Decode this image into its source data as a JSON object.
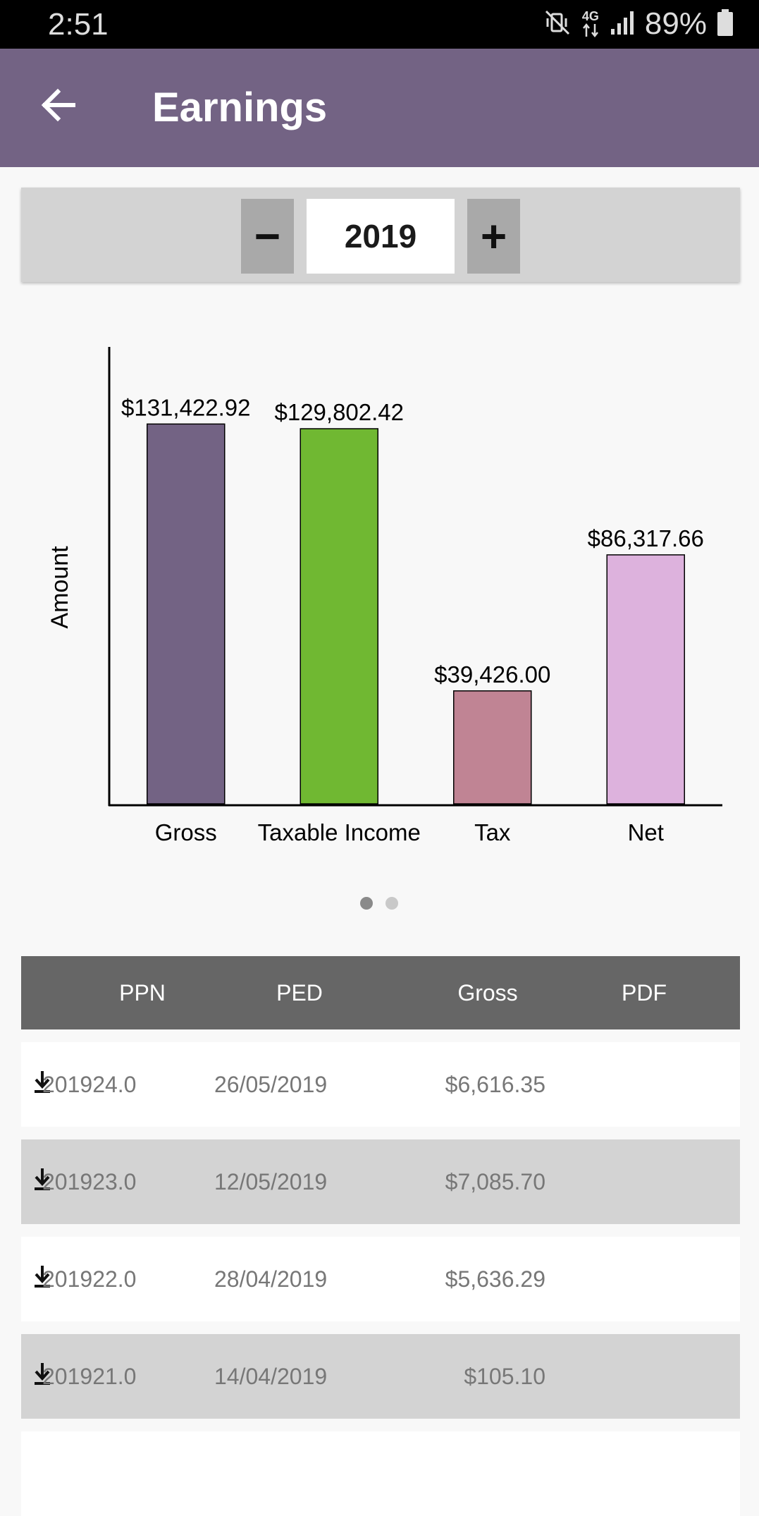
{
  "status_bar": {
    "time": "2:51",
    "network": "4G",
    "battery": "89%",
    "icons": [
      "mute-vibrate-icon",
      "network-4g-icon",
      "signal-icon",
      "battery-icon"
    ]
  },
  "app_bar": {
    "title": "Earnings",
    "back_icon": "arrow-left-icon",
    "color": "#736384"
  },
  "year_selector": {
    "minus_label": "−",
    "plus_label": "+",
    "year": "2019"
  },
  "chart_data": {
    "type": "bar",
    "ylabel": "Amount",
    "xlabel": "",
    "categories": [
      "Gross",
      "Taxable Income",
      "Tax",
      "Net"
    ],
    "values": [
      131422.92,
      129802.42,
      39426.0,
      86317.66
    ],
    "value_labels": [
      "$131,422.92",
      "$129,802.42",
      "$39,426.00",
      "$86,317.66"
    ],
    "colors": [
      "#736384",
      "#70b832",
      "#c08494",
      "#ddb2dd"
    ],
    "ylim": [
      0,
      158000
    ],
    "grid": false
  },
  "pager": {
    "pages": 2,
    "active": 0
  },
  "table": {
    "columns": [
      "PPN",
      "PED",
      "Gross",
      "PDF"
    ],
    "rows": [
      {
        "ppn": "201924.0",
        "ped": "26/05/2019",
        "gross": "$6,616.35",
        "pdf_icon": "download-icon"
      },
      {
        "ppn": "201923.0",
        "ped": "12/05/2019",
        "gross": "$7,085.70",
        "pdf_icon": "download-icon"
      },
      {
        "ppn": "201922.0",
        "ped": "28/04/2019",
        "gross": "$5,636.29",
        "pdf_icon": "download-icon"
      },
      {
        "ppn": "201921.0",
        "ped": "14/04/2019",
        "gross": "$105.10",
        "pdf_icon": "download-icon"
      }
    ]
  }
}
